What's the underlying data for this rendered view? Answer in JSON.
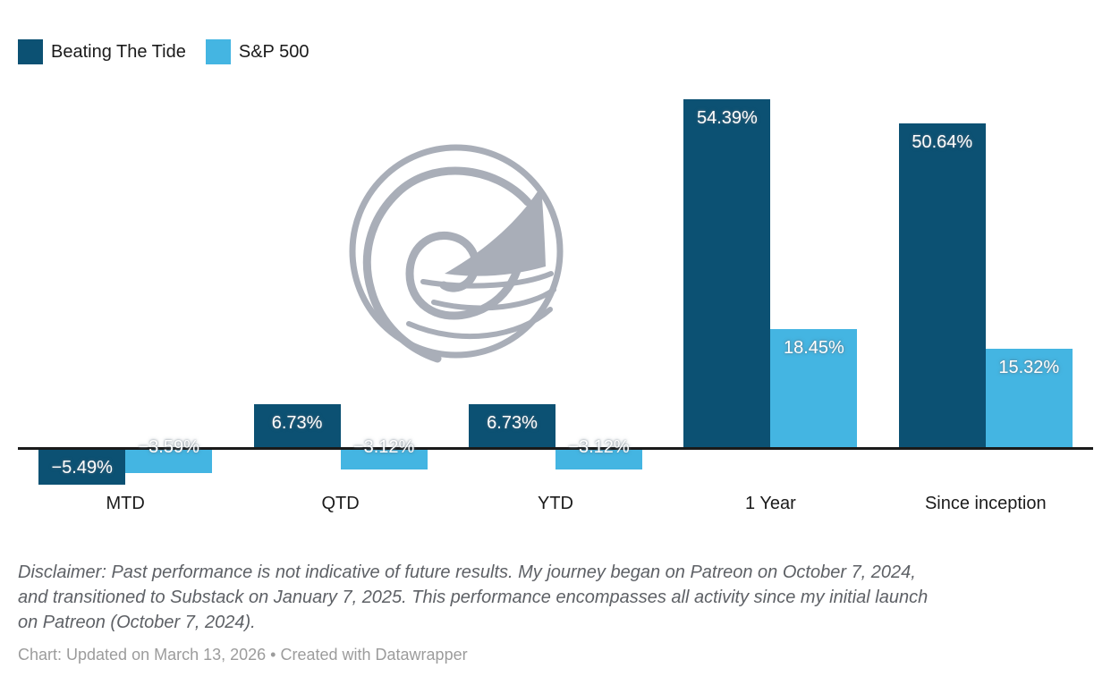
{
  "canvas": {
    "background": "#ffffff"
  },
  "legend": {
    "items": [
      {
        "label": "Beating The Tide",
        "color": "#0c5173"
      },
      {
        "label": "S&P 500",
        "color": "#44b5e2"
      }
    ]
  },
  "chart_data": {
    "type": "bar",
    "title": "",
    "xlabel": "",
    "ylabel": "",
    "categories": [
      "MTD",
      "QTD",
      "YTD",
      "1 Year",
      "Since inception"
    ],
    "series": [
      {
        "name": "Beating The Tide",
        "color": "#0c5173",
        "values": [
          -5.49,
          6.73,
          6.73,
          54.39,
          50.64
        ],
        "labels": [
          "−5.49%",
          "6.73%",
          "6.73%",
          "54.39%",
          "50.64%"
        ]
      },
      {
        "name": "S&P 500",
        "color": "#44b5e2",
        "values": [
          -3.59,
          -3.12,
          -3.12,
          18.45,
          15.32
        ],
        "labels": [
          "−3.59%",
          "−3.12%",
          "−3.12%",
          "18.45%",
          "15.32%"
        ]
      }
    ],
    "value_format": "percent, two decimals",
    "baseline": 0,
    "grid": false,
    "legend_position": "top-left",
    "axis_color": "#1a1a1a",
    "bar_label_color": "#ffffff"
  },
  "watermark": {
    "name": "wave-and-shark-fin-logo",
    "color": "#a9aeb8"
  },
  "disclaimer": {
    "lines": [
      "Disclaimer: Past performance is not indicative of future results. My journey began on Patreon on October 7, 2024,",
      "and transitioned to Substack on January 7, 2025. This performance encompasses all activity since my initial launch",
      "on Patreon (October 7, 2024)."
    ]
  },
  "footer": {
    "prefix": "Chart: Updated on March 13, 2026 • Created with ",
    "link": "Datawrapper"
  }
}
